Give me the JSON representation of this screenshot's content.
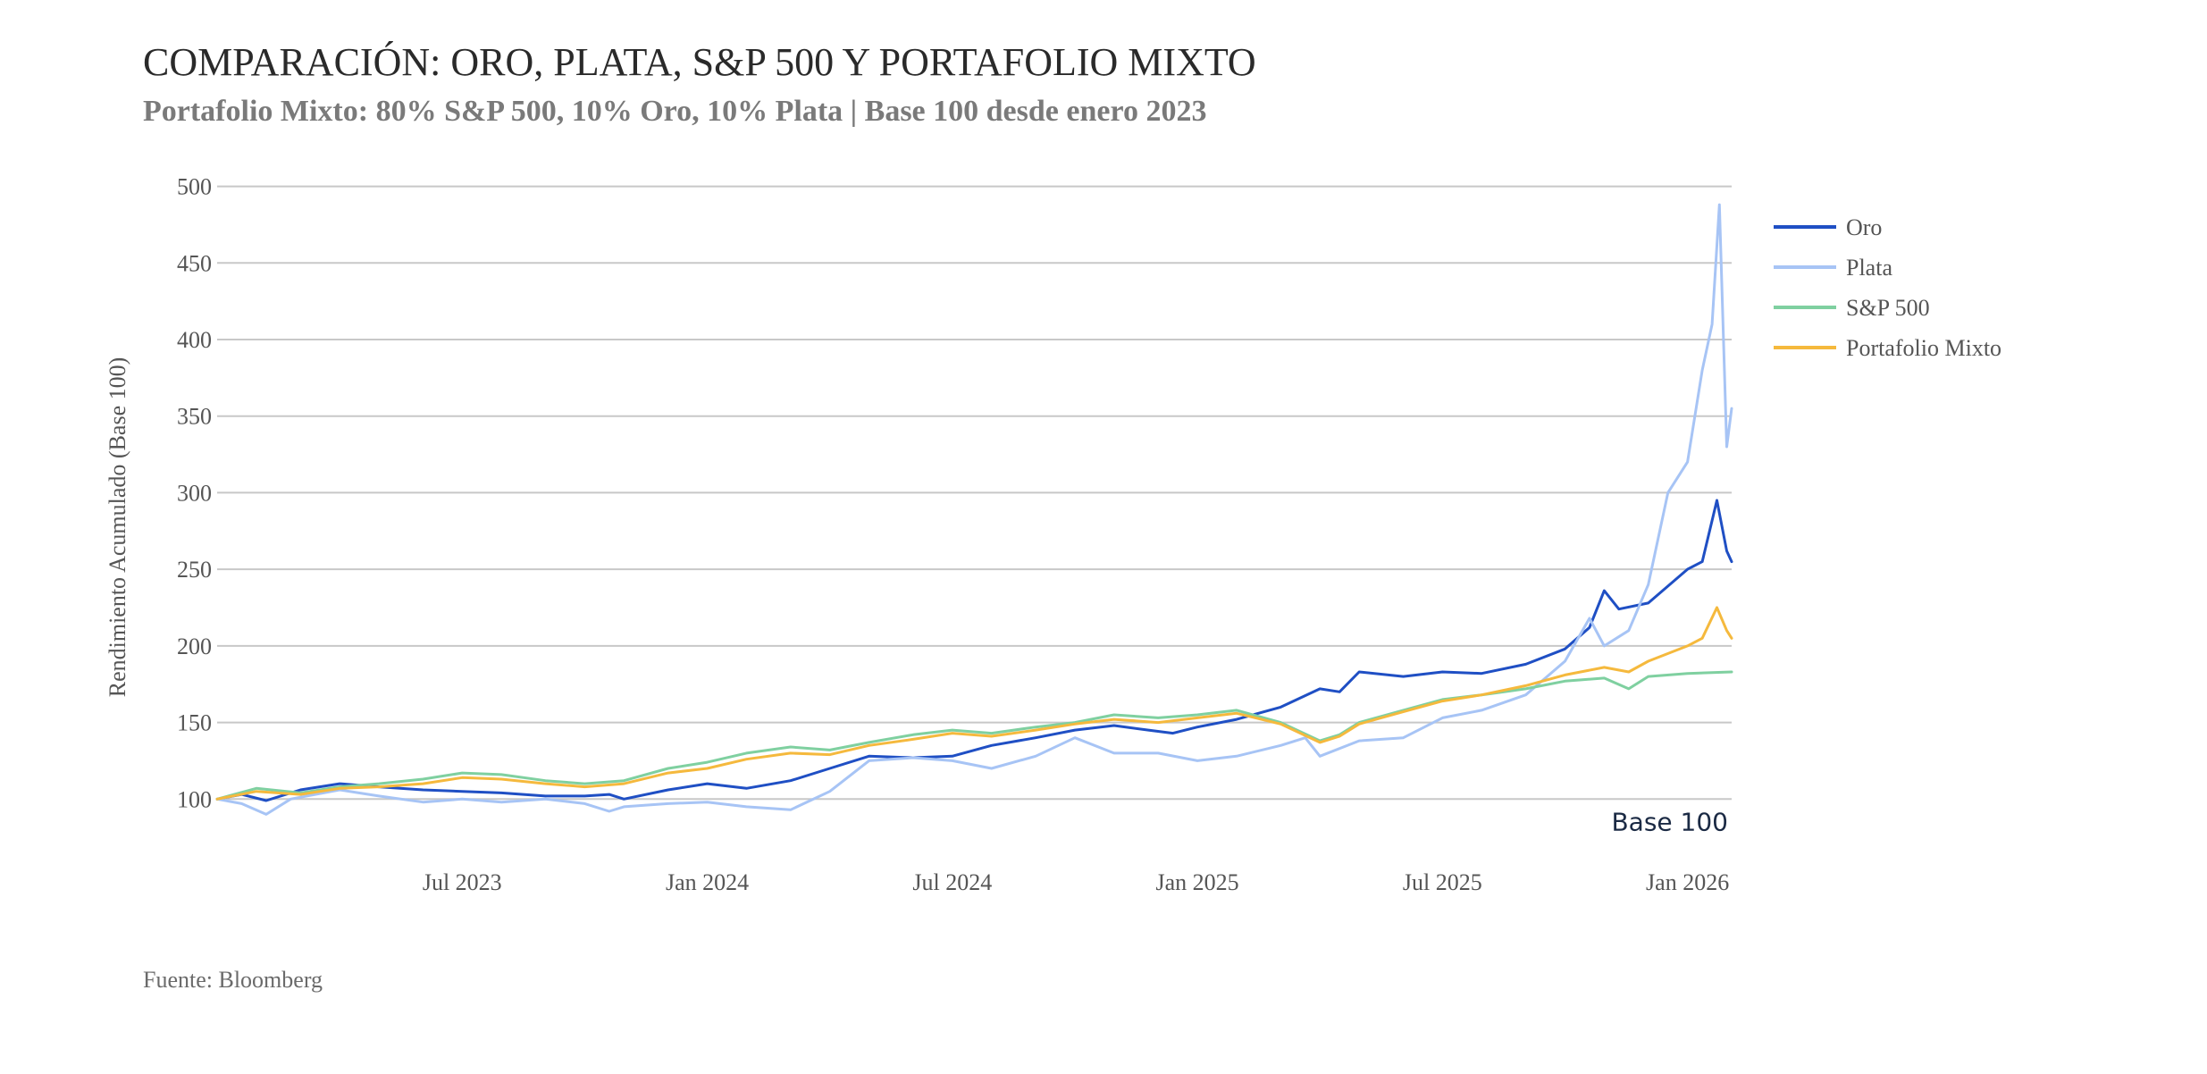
{
  "header": {
    "title": "COMPARACIÓN: ORO, PLATA, S&P 500 Y PORTAFOLIO MIXTO",
    "subtitle": "Portafolio Mixto: 80% S&P 500, 10% Oro, 10% Plata | Base 100 desde enero 2023"
  },
  "footer": {
    "source": "Fuente: Bloomberg"
  },
  "chart_data": {
    "type": "line",
    "title": "COMPARACIÓN: ORO, PLATA, S&P 500 Y PORTAFOLIO MIXTO",
    "subtitle": "Portafolio Mixto: 80% S&P 500, 10% Oro, 10% Plata | Base 100 desde enero 2023",
    "xlabel": "",
    "ylabel": "Rendimiento Acumulado (Base 100)",
    "ylim": [
      85,
      505
    ],
    "yticks": [
      100,
      150,
      200,
      250,
      300,
      350,
      400,
      450,
      500
    ],
    "xlim": [
      2023.0,
      2026.09
    ],
    "xticks": [
      {
        "x": 2023.5,
        "label": "Jul 2023"
      },
      {
        "x": 2024.0,
        "label": "Jan 2024"
      },
      {
        "x": 2024.5,
        "label": "Jul 2024"
      },
      {
        "x": 2025.0,
        "label": "Jan 2025"
      },
      {
        "x": 2025.5,
        "label": "Jul 2025"
      },
      {
        "x": 2026.0,
        "label": "Jan 2026"
      }
    ],
    "grid": true,
    "legend_position": "top-right",
    "annotations": [
      {
        "text": "Base 100",
        "y": 100
      }
    ],
    "series": [
      {
        "name": "Oro",
        "color": "#1f4fc4",
        "points": [
          [
            2023.0,
            100
          ],
          [
            2023.05,
            103
          ],
          [
            2023.1,
            99
          ],
          [
            2023.17,
            106
          ],
          [
            2023.25,
            110
          ],
          [
            2023.33,
            108
          ],
          [
            2023.42,
            106
          ],
          [
            2023.5,
            105
          ],
          [
            2023.58,
            104
          ],
          [
            2023.67,
            102
          ],
          [
            2023.75,
            102
          ],
          [
            2023.8,
            103
          ],
          [
            2023.83,
            100
          ],
          [
            2023.92,
            106
          ],
          [
            2024.0,
            110
          ],
          [
            2024.08,
            107
          ],
          [
            2024.17,
            112
          ],
          [
            2024.25,
            120
          ],
          [
            2024.33,
            128
          ],
          [
            2024.42,
            127
          ],
          [
            2024.5,
            128
          ],
          [
            2024.58,
            135
          ],
          [
            2024.67,
            140
          ],
          [
            2024.75,
            145
          ],
          [
            2024.83,
            148
          ],
          [
            2024.9,
            145
          ],
          [
            2024.95,
            143
          ],
          [
            2025.0,
            147
          ],
          [
            2025.08,
            152
          ],
          [
            2025.17,
            160
          ],
          [
            2025.25,
            172
          ],
          [
            2025.29,
            170
          ],
          [
            2025.33,
            183
          ],
          [
            2025.42,
            180
          ],
          [
            2025.5,
            183
          ],
          [
            2025.58,
            182
          ],
          [
            2025.67,
            188
          ],
          [
            2025.75,
            198
          ],
          [
            2025.8,
            212
          ],
          [
            2025.83,
            236
          ],
          [
            2025.86,
            224
          ],
          [
            2025.92,
            228
          ],
          [
            2026.0,
            250
          ],
          [
            2026.03,
            255
          ],
          [
            2026.06,
            295
          ],
          [
            2026.08,
            262
          ],
          [
            2026.09,
            255
          ]
        ]
      },
      {
        "name": "Plata",
        "color": "#a7c4f5",
        "points": [
          [
            2023.0,
            100
          ],
          [
            2023.05,
            97
          ],
          [
            2023.1,
            90
          ],
          [
            2023.15,
            100
          ],
          [
            2023.25,
            106
          ],
          [
            2023.33,
            102
          ],
          [
            2023.42,
            98
          ],
          [
            2023.5,
            100
          ],
          [
            2023.58,
            98
          ],
          [
            2023.67,
            100
          ],
          [
            2023.75,
            97
          ],
          [
            2023.8,
            92
          ],
          [
            2023.83,
            95
          ],
          [
            2023.92,
            97
          ],
          [
            2024.0,
            98
          ],
          [
            2024.08,
            95
          ],
          [
            2024.17,
            93
          ],
          [
            2024.25,
            105
          ],
          [
            2024.33,
            125
          ],
          [
            2024.42,
            127
          ],
          [
            2024.5,
            125
          ],
          [
            2024.58,
            120
          ],
          [
            2024.67,
            128
          ],
          [
            2024.75,
            140
          ],
          [
            2024.83,
            130
          ],
          [
            2024.92,
            130
          ],
          [
            2025.0,
            125
          ],
          [
            2025.08,
            128
          ],
          [
            2025.17,
            135
          ],
          [
            2025.22,
            140
          ],
          [
            2025.25,
            128
          ],
          [
            2025.33,
            138
          ],
          [
            2025.42,
            140
          ],
          [
            2025.5,
            153
          ],
          [
            2025.58,
            158
          ],
          [
            2025.67,
            168
          ],
          [
            2025.75,
            190
          ],
          [
            2025.8,
            218
          ],
          [
            2025.83,
            200
          ],
          [
            2025.88,
            210
          ],
          [
            2025.92,
            240
          ],
          [
            2025.96,
            300
          ],
          [
            2026.0,
            320
          ],
          [
            2026.03,
            380
          ],
          [
            2026.05,
            410
          ],
          [
            2026.065,
            488
          ],
          [
            2026.08,
            330
          ],
          [
            2026.09,
            355
          ]
        ]
      },
      {
        "name": "S&P 500",
        "color": "#7fd0a0",
        "points": [
          [
            2023.0,
            100
          ],
          [
            2023.08,
            107
          ],
          [
            2023.17,
            104
          ],
          [
            2023.25,
            108
          ],
          [
            2023.33,
            110
          ],
          [
            2023.42,
            113
          ],
          [
            2023.5,
            117
          ],
          [
            2023.58,
            116
          ],
          [
            2023.67,
            112
          ],
          [
            2023.75,
            110
          ],
          [
            2023.83,
            112
          ],
          [
            2023.92,
            120
          ],
          [
            2024.0,
            124
          ],
          [
            2024.08,
            130
          ],
          [
            2024.17,
            134
          ],
          [
            2024.25,
            132
          ],
          [
            2024.33,
            137
          ],
          [
            2024.42,
            142
          ],
          [
            2024.5,
            145
          ],
          [
            2024.58,
            143
          ],
          [
            2024.67,
            147
          ],
          [
            2024.75,
            150
          ],
          [
            2024.83,
            155
          ],
          [
            2024.92,
            153
          ],
          [
            2025.0,
            155
          ],
          [
            2025.08,
            158
          ],
          [
            2025.17,
            150
          ],
          [
            2025.25,
            138
          ],
          [
            2025.29,
            142
          ],
          [
            2025.33,
            150
          ],
          [
            2025.42,
            158
          ],
          [
            2025.5,
            165
          ],
          [
            2025.58,
            168
          ],
          [
            2025.67,
            172
          ],
          [
            2025.75,
            177
          ],
          [
            2025.83,
            179
          ],
          [
            2025.88,
            172
          ],
          [
            2025.92,
            180
          ],
          [
            2026.0,
            182
          ],
          [
            2026.09,
            183
          ]
        ]
      },
      {
        "name": "Portafolio Mixto",
        "color": "#f5b93d",
        "points": [
          [
            2023.0,
            100
          ],
          [
            2023.08,
            105
          ],
          [
            2023.17,
            103
          ],
          [
            2023.25,
            107
          ],
          [
            2023.33,
            108
          ],
          [
            2023.42,
            110
          ],
          [
            2023.5,
            114
          ],
          [
            2023.58,
            113
          ],
          [
            2023.67,
            110
          ],
          [
            2023.75,
            108
          ],
          [
            2023.83,
            110
          ],
          [
            2023.92,
            117
          ],
          [
            2024.0,
            120
          ],
          [
            2024.08,
            126
          ],
          [
            2024.17,
            130
          ],
          [
            2024.25,
            129
          ],
          [
            2024.33,
            135
          ],
          [
            2024.42,
            139
          ],
          [
            2024.5,
            143
          ],
          [
            2024.58,
            141
          ],
          [
            2024.67,
            145
          ],
          [
            2024.75,
            149
          ],
          [
            2024.83,
            152
          ],
          [
            2024.92,
            150
          ],
          [
            2025.0,
            153
          ],
          [
            2025.08,
            156
          ],
          [
            2025.17,
            149
          ],
          [
            2025.25,
            137
          ],
          [
            2025.29,
            141
          ],
          [
            2025.33,
            149
          ],
          [
            2025.42,
            157
          ],
          [
            2025.5,
            164
          ],
          [
            2025.58,
            168
          ],
          [
            2025.67,
            174
          ],
          [
            2025.75,
            181
          ],
          [
            2025.83,
            186
          ],
          [
            2025.88,
            183
          ],
          [
            2025.92,
            190
          ],
          [
            2026.0,
            200
          ],
          [
            2026.03,
            205
          ],
          [
            2026.06,
            225
          ],
          [
            2026.08,
            210
          ],
          [
            2026.09,
            205
          ]
        ]
      }
    ]
  }
}
